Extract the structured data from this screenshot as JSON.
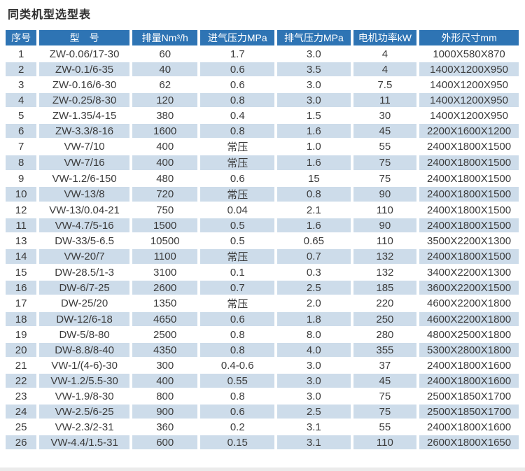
{
  "page": {
    "title": "同类机型选型表",
    "colors": {
      "header_bg": "#2e74b4",
      "header_text": "#ffffff",
      "alt_row_bg": "#cddcea",
      "body_text": "#3b3b3b",
      "background": "#ffffff"
    }
  },
  "table": {
    "columns": [
      "序号",
      "型　号",
      "排量Nm³/h",
      "进气压力MPa",
      "排气压力MPa",
      "电机功率kW",
      "外形尺寸mm"
    ],
    "rows": [
      [
        "1",
        "ZW-0.06/17-30",
        "60",
        "1.7",
        "3.0",
        "4",
        "1000X580X870"
      ],
      [
        "2",
        "ZW-0.1/6-35",
        "40",
        "0.6",
        "3.5",
        "4",
        "1400X1200X950"
      ],
      [
        "3",
        "ZW-0.16/6-30",
        "62",
        "0.6",
        "3.0",
        "7.5",
        "1400X1200X950"
      ],
      [
        "4",
        "ZW-0.25/8-30",
        "120",
        "0.8",
        "3.0",
        "11",
        "1400X1200X950"
      ],
      [
        "5",
        "ZW-1.35/4-15",
        "380",
        "0.4",
        "1.5",
        "30",
        "1400X1200X950"
      ],
      [
        "6",
        "ZW-3.3/8-16",
        "1600",
        "0.8",
        "1.6",
        "45",
        "2200X1600X1200"
      ],
      [
        "7",
        "VW-7/10",
        "400",
        "常压",
        "1.0",
        "55",
        "2400X1800X1500"
      ],
      [
        "8",
        "VW-7/16",
        "400",
        "常压",
        "1.6",
        "75",
        "2400X1800X1500"
      ],
      [
        "9",
        "VW-1.2/6-150",
        "480",
        "0.6",
        "15",
        "75",
        "2400X1800X1500"
      ],
      [
        "10",
        "VW-13/8",
        "720",
        "常压",
        "0.8",
        "90",
        "2400X1800X1500"
      ],
      [
        "12",
        "VW-13/0.04-21",
        "750",
        "0.04",
        "2.1",
        "110",
        "2400X1800X1500"
      ],
      [
        "11",
        "VW-4.7/5-16",
        "1500",
        "0.5",
        "1.6",
        "90",
        "2400X1800X1500"
      ],
      [
        "13",
        "DW-33/5-6.5",
        "10500",
        "0.5",
        "0.65",
        "110",
        "3500X2200X1300"
      ],
      [
        "14",
        "VW-20/7",
        "1100",
        "常压",
        "0.7",
        "132",
        "2400X1800X1500"
      ],
      [
        "15",
        "DW-28.5/1-3",
        "3100",
        "0.1",
        "0.3",
        "132",
        "3400X2200X1300"
      ],
      [
        "16",
        "DW-6/7-25",
        "2600",
        "0.7",
        "2.5",
        "185",
        "3600X2200X1500"
      ],
      [
        "17",
        "DW-25/20",
        "1350",
        "常压",
        "2.0",
        "220",
        "4600X2200X1800"
      ],
      [
        "18",
        "DW-12/6-18",
        "4650",
        "0.6",
        "1.8",
        "250",
        "4600X2200X1800"
      ],
      [
        "19",
        "DW-5/8-80",
        "2500",
        "0.8",
        "8.0",
        "280",
        "4800X2500X1800"
      ],
      [
        "20",
        "DW-8.8/8-40",
        "4350",
        "0.8",
        "4.0",
        "355",
        "5300X2800X1800"
      ],
      [
        "21",
        "VW-1/(4-6)-30",
        "300",
        "0.4-0.6",
        "3.0",
        "37",
        "2400X1800X1600"
      ],
      [
        "22",
        "VW-1.2/5.5-30",
        "400",
        "0.55",
        "3.0",
        "45",
        "2400X1800X1600"
      ],
      [
        "23",
        "VW-1.9/8-30",
        "800",
        "0.8",
        "3.0",
        "75",
        "2500X1850X1700"
      ],
      [
        "24",
        "VW-2.5/6-25",
        "900",
        "0.6",
        "2.5",
        "75",
        "2500X1850X1700"
      ],
      [
        "25",
        "VW-2.3/2-31",
        "360",
        "0.2",
        "3.1",
        "55",
        "2400X1800X1600"
      ],
      [
        "26",
        "VW-4.4/1.5-31",
        "600",
        "0.15",
        "3.1",
        "110",
        "2600X1800X1650"
      ]
    ]
  }
}
